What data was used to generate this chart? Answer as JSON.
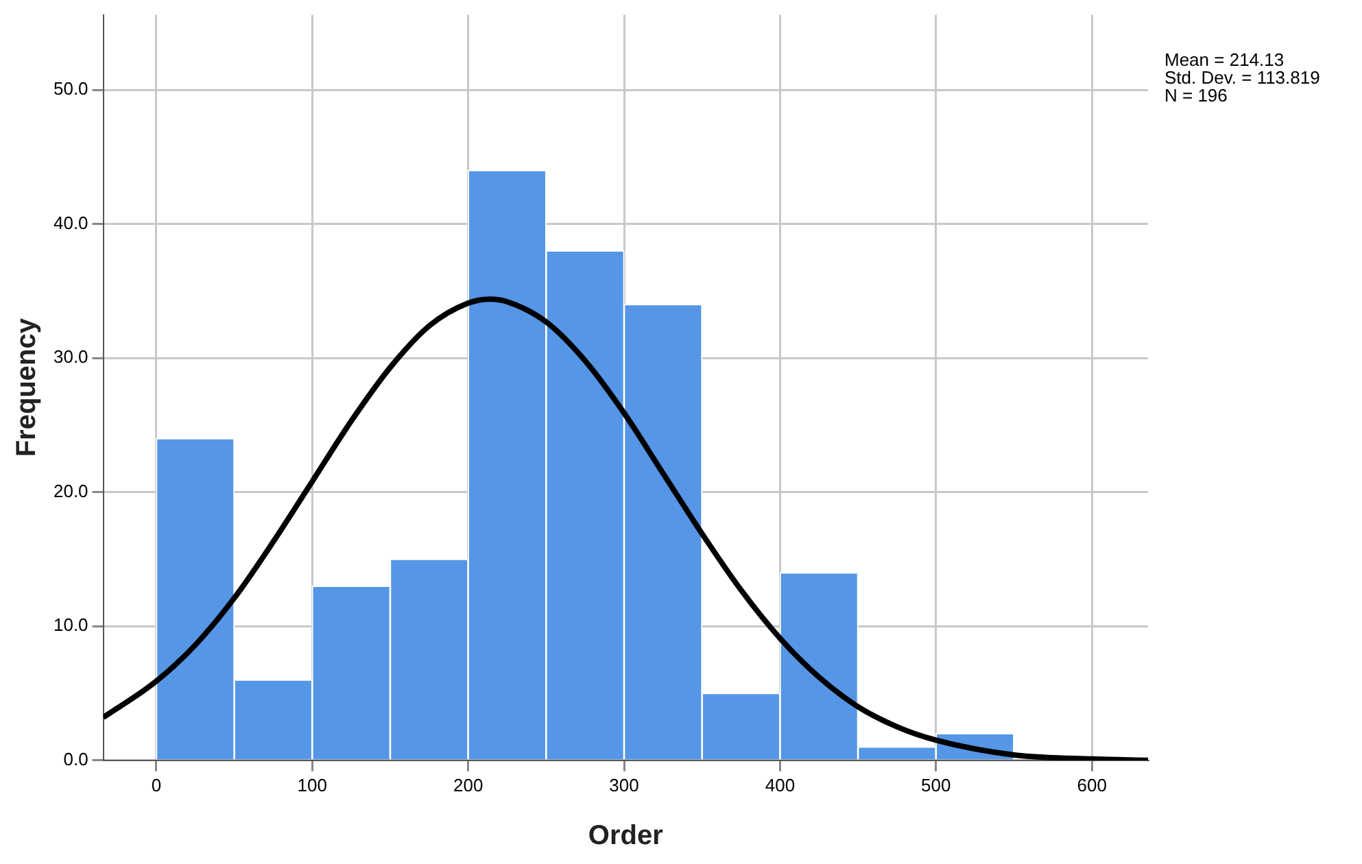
{
  "chart_data": {
    "type": "histogram",
    "xlabel": "Order",
    "ylabel": "Frequency",
    "bins": [
      0,
      50,
      100,
      150,
      200,
      250,
      300,
      350,
      400,
      450,
      500,
      550
    ],
    "values": [
      24,
      6,
      13,
      15,
      44,
      38,
      34,
      5,
      14,
      1,
      2
    ],
    "color": "#5596e6",
    "series": [
      {
        "type": "line",
        "color": "#000000",
        "x": [
          -34,
          0,
          25,
          50,
          75,
          100,
          125,
          150,
          175,
          200,
          214,
          225,
          250,
          275,
          300,
          325,
          350,
          375,
          400,
          425,
          450,
          475,
          500,
          550,
          600,
          636
        ],
        "values": [
          3.2,
          5.9,
          8.6,
          12.1,
          16.3,
          20.8,
          25.3,
          29.3,
          32.4,
          34.1,
          34.4,
          34.2,
          32.7,
          29.8,
          25.9,
          21.4,
          16.9,
          12.7,
          9.1,
          6.2,
          4.0,
          2.5,
          1.5,
          0.4,
          0.1,
          0.0
        ]
      }
    ],
    "xlim": [
      -34,
      636
    ],
    "xticks": [
      0,
      100,
      200,
      300,
      400,
      500,
      600
    ],
    "ylim": [
      0,
      55.6
    ],
    "yticks": [
      {
        "value": 0,
        "label": "0.0"
      },
      {
        "value": 10,
        "label": "10.0"
      },
      {
        "value": 20,
        "label": "20.0"
      },
      {
        "value": 30,
        "label": "30.0"
      },
      {
        "value": 40,
        "label": "40.0"
      },
      {
        "value": 50,
        "label": "50.0"
      }
    ],
    "grid": true,
    "legend": false,
    "marker": "none",
    "line_style": "solid",
    "annotations": [
      "Mean = 214.13",
      "Std. Dev. = 113.819",
      "N = 196"
    ]
  }
}
